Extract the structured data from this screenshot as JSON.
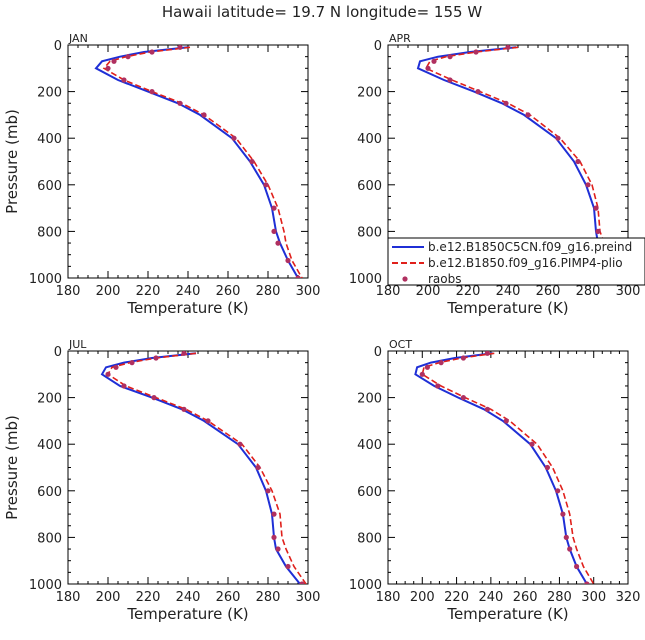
{
  "figure": {
    "title": "Hawaii   latitude= 19.7 N longitude= 155 W"
  },
  "colors": {
    "model1": "#1f2fd6",
    "model2": "#e0201b",
    "obs": "#b03060"
  },
  "chart_data": [
    {
      "type": "line",
      "panel": "JAN",
      "xlabel": "Temperature (K)",
      "ylabel": "Pressure (mb)",
      "xlim": [
        180,
        300
      ],
      "ylim": [
        1000,
        0
      ],
      "xticks": [
        180,
        200,
        220,
        240,
        260,
        280,
        300
      ],
      "yticks": [
        0,
        200,
        400,
        600,
        800,
        1000
      ],
      "pressure": [
        10,
        30,
        50,
        70,
        100,
        150,
        200,
        250,
        300,
        400,
        500,
        600,
        700,
        800,
        850,
        925,
        1000
      ],
      "series": [
        {
          "name": "b.e12.B1850C5CN.f09_g16.preind",
          "style": "solid",
          "values": [
            240,
            218,
            206,
            197,
            194,
            205,
            220,
            235,
            246,
            262,
            271,
            278,
            282,
            284,
            286,
            290,
            295
          ]
        },
        {
          "name": "b.e12.B1850.f09_g16.PIMP4-plio",
          "style": "dashed",
          "values": [
            241,
            221,
            209,
            201,
            198,
            208,
            222,
            237,
            248,
            264,
            273,
            280,
            285,
            288,
            289,
            292,
            297
          ]
        },
        {
          "name": "raobs",
          "style": "dots",
          "values": [
            236,
            222,
            210,
            203,
            200,
            208,
            222,
            236,
            248,
            263,
            272,
            279,
            283,
            283,
            285,
            290,
            295
          ]
        }
      ]
    },
    {
      "type": "line",
      "panel": "APR",
      "xlabel": "Temperature (K)",
      "ylabel": "",
      "xlim": [
        180,
        300
      ],
      "ylim": [
        1000,
        0
      ],
      "xticks": [
        180,
        200,
        220,
        240,
        260,
        280,
        300
      ],
      "yticks": [
        0,
        200,
        400,
        600,
        800,
        1000
      ],
      "pressure": [
        10,
        30,
        50,
        70,
        100,
        150,
        200,
        250,
        300,
        400,
        500,
        600,
        700,
        800,
        850,
        925,
        1000
      ],
      "series": [
        {
          "name": "b.e12.B1850C5CN.f09_g16.preind",
          "style": "solid",
          "values": [
            244,
            221,
            205,
            196,
            195,
            208,
            223,
            237,
            248,
            264,
            273,
            279,
            283,
            284,
            285,
            290,
            295
          ]
        },
        {
          "name": "b.e12.B1850.f09_g16.PIMP4-plio",
          "style": "dashed",
          "values": [
            245,
            224,
            209,
            201,
            199,
            212,
            226,
            240,
            251,
            266,
            276,
            282,
            285,
            286,
            288,
            293,
            298
          ]
        },
        {
          "name": "raobs",
          "style": "dots",
          "values": [
            240,
            224,
            211,
            203,
            200,
            211,
            225,
            239,
            250,
            265,
            275,
            280,
            284,
            285,
            286,
            291,
            296
          ]
        }
      ]
    },
    {
      "type": "line",
      "panel": "JUL",
      "xlabel": "Temperature (K)",
      "ylabel": "Pressure (mb)",
      "xlim": [
        180,
        300
      ],
      "ylim": [
        1000,
        0
      ],
      "xticks": [
        180,
        200,
        220,
        240,
        260,
        280,
        300
      ],
      "yticks": [
        0,
        200,
        400,
        600,
        800,
        1000
      ],
      "pressure": [
        10,
        30,
        50,
        70,
        100,
        150,
        200,
        250,
        300,
        400,
        500,
        600,
        700,
        800,
        850,
        925,
        1000
      ],
      "series": [
        {
          "name": "b.e12.B1850C5CN.f09_g16.preind",
          "style": "solid",
          "values": [
            244,
            222,
            208,
            199,
            197,
            206,
            222,
            237,
            248,
            265,
            274,
            279,
            282,
            283,
            284,
            289,
            296
          ]
        },
        {
          "name": "b.e12.B1850.f09_g16.PIMP4-plio",
          "style": "dashed",
          "values": [
            244,
            224,
            211,
            202,
            200,
            209,
            224,
            239,
            250,
            267,
            276,
            282,
            286,
            287,
            289,
            293,
            299
          ]
        },
        {
          "name": "raobs",
          "style": "dots",
          "values": [
            238,
            224,
            212,
            204,
            200,
            208,
            223,
            238,
            250,
            266,
            275,
            280,
            283,
            283,
            285,
            290,
            297
          ]
        }
      ]
    },
    {
      "type": "line",
      "panel": "OCT",
      "xlabel": "Temperature (K)",
      "ylabel": "",
      "xlim": [
        180,
        320
      ],
      "ylim": [
        1000,
        0
      ],
      "xticks": [
        180,
        200,
        220,
        240,
        260,
        280,
        300,
        320
      ],
      "yticks": [
        0,
        200,
        400,
        600,
        800,
        1000
      ],
      "pressure": [
        10,
        30,
        50,
        70,
        100,
        150,
        200,
        250,
        300,
        400,
        500,
        600,
        700,
        800,
        850,
        925,
        1000
      ],
      "series": [
        {
          "name": "b.e12.B1850C5CN.f09_g16.preind",
          "style": "solid",
          "values": [
            241,
            219,
            205,
            197,
            196,
            207,
            221,
            236,
            247,
            263,
            272,
            278,
            282,
            284,
            286,
            290,
            296
          ]
        },
        {
          "name": "b.e12.B1850.f09_g16.PIMP4-plio",
          "style": "dashed",
          "values": [
            242,
            223,
            210,
            201,
            200,
            211,
            225,
            240,
            251,
            267,
            276,
            282,
            286,
            288,
            290,
            294,
            300
          ]
        },
        {
          "name": "raobs",
          "style": "dots",
          "values": [
            238,
            224,
            211,
            203,
            200,
            209,
            224,
            238,
            249,
            264,
            273,
            279,
            282,
            284,
            286,
            290,
            296
          ]
        }
      ]
    }
  ],
  "legend": {
    "panel": "APR",
    "entries": [
      {
        "label": "b.e12.B1850C5CN.f09_g16.preind",
        "style": "solid"
      },
      {
        "label": "b.e12.B1850.f09_g16.PIMP4-plio",
        "style": "dashed"
      },
      {
        "label": "raobs",
        "style": "dots"
      }
    ]
  }
}
